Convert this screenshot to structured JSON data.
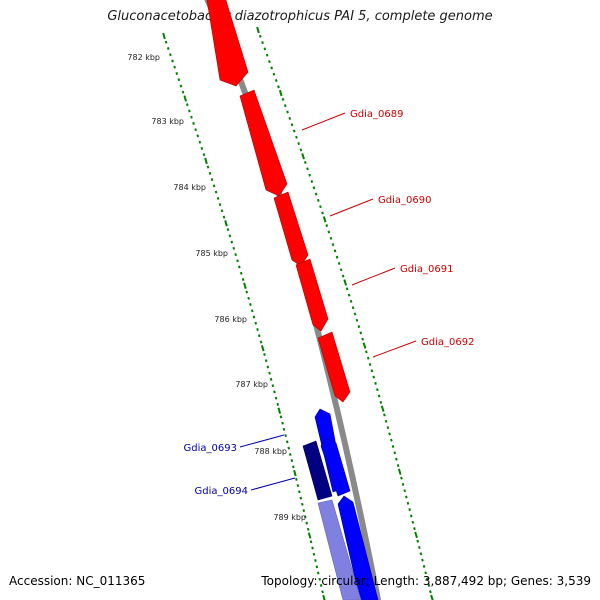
{
  "title": "Gluconacetobacter diazotrophicus PAI 5, complete genome",
  "footer": {
    "accession": "Accession: NC_011365",
    "topology": "Topology: circular; Length: 3,887,492 bp; Genes: 3,539"
  },
  "scale_labels": [
    "782 kbp",
    "783 kbp",
    "784 kbp",
    "785 kbp",
    "786 kbp",
    "787 kbp",
    "788 kbp",
    "789 kbp"
  ],
  "genes": [
    {
      "label": "Gdia_0689",
      "strand": "forward"
    },
    {
      "label": "Gdia_0690",
      "strand": "forward"
    },
    {
      "label": "Gdia_0691",
      "strand": "forward"
    },
    {
      "label": "Gdia_0692",
      "strand": "forward"
    },
    {
      "label": "Gdia_0693",
      "strand": "reverse"
    },
    {
      "label": "Gdia_0694",
      "strand": "reverse"
    }
  ],
  "colors": {
    "forward_gene": "#ff0000",
    "reverse_gene": "#0000ff",
    "reverse_gene_dark": "#000080",
    "reverse_gene_light": "#8080e0",
    "backbone": "#808080",
    "ticks": "#008000",
    "forward_label": "#cc0000",
    "reverse_label": "#0000aa"
  }
}
